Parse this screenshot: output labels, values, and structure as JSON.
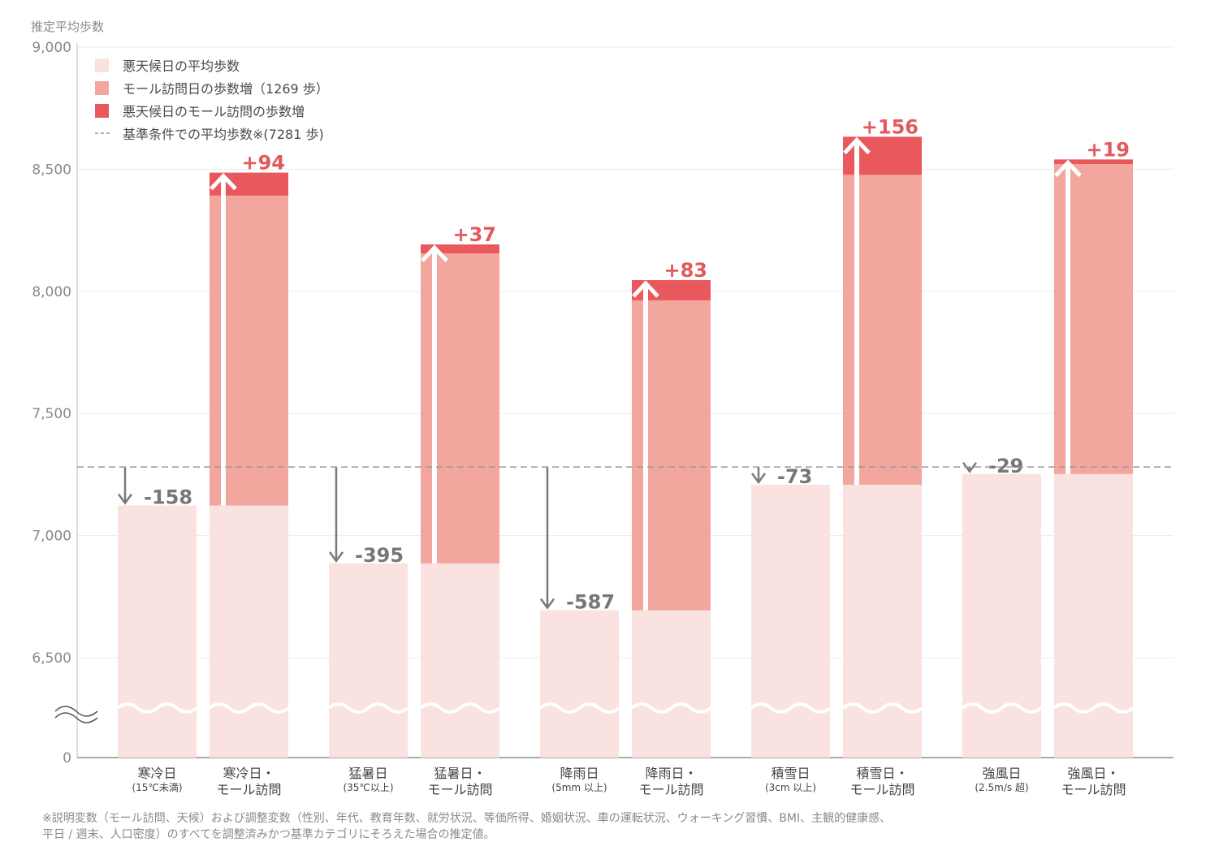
{
  "chart_data": {
    "type": "bar",
    "ylabel": "推定平均歩数",
    "ylim": [
      0,
      9000
    ],
    "y_axis_break": true,
    "yticks": [
      "9,000",
      "8,500",
      "8,000",
      "7,500",
      "7,000",
      "6,500",
      "0"
    ],
    "grid": true,
    "legend_position": "top-left",
    "legend": [
      {
        "label": "悪天候日の平均歩数",
        "color": "#f9e2df"
      },
      {
        "label": "モール訪問日の歩数増（1269 歩）",
        "color": "#f2a69d"
      },
      {
        "label": "悪天候日のモール訪問の歩数増",
        "color": "#e8585c"
      },
      {
        "label": "基準条件での平均歩数※(7281 歩)",
        "style": "dashed",
        "color": "#9a9a9a"
      }
    ],
    "baseline": 7281,
    "groups": [
      {
        "weather": {
          "line1": "寒冷日",
          "line2": "(15℃未満)",
          "value": 7123,
          "delta": -158,
          "delta_label": "-158"
        },
        "mall": {
          "line1": "寒冷日・",
          "line2": "モール訪問",
          "base": 7123,
          "increase": 1269,
          "extra": 94,
          "extra_label": "+94"
        }
      },
      {
        "weather": {
          "line1": "猛暑日",
          "line2": "(35℃以上)",
          "value": 6886,
          "delta": -395,
          "delta_label": "-395"
        },
        "mall": {
          "line1": "猛暑日・",
          "line2": "モール訪問",
          "base": 6886,
          "increase": 1269,
          "extra": 37,
          "extra_label": "+37"
        }
      },
      {
        "weather": {
          "line1": "降雨日",
          "line2": "(5mm 以上)",
          "value": 6694,
          "delta": -587,
          "delta_label": "-587"
        },
        "mall": {
          "line1": "降雨日・",
          "line2": "モール訪問",
          "base": 6694,
          "increase": 1269,
          "extra": 83,
          "extra_label": "+83"
        }
      },
      {
        "weather": {
          "line1": "積雪日",
          "line2": "(3cm 以上)",
          "value": 7208,
          "delta": -73,
          "delta_label": "-73"
        },
        "mall": {
          "line1": "積雪日・",
          "line2": "モール訪問",
          "base": 7208,
          "increase": 1269,
          "extra": 156,
          "extra_label": "+156"
        }
      },
      {
        "weather": {
          "line1": "強風日",
          "line2": "(2.5m/s 超)",
          "value": 7252,
          "delta": -29,
          "delta_label": "-29"
        },
        "mall": {
          "line1": "強風日・",
          "line2": "モール訪問",
          "base": 7252,
          "increase": 1269,
          "extra": 19,
          "extra_label": "+19"
        }
      }
    ]
  },
  "footnote": {
    "line1": "※説明変数（モール訪問、天候）および調整変数（性別、年代、教育年数、就労状況、等価所得、婚姻状況、車の運転状況、ウォーキング習慣、BMI、主観的健康感、",
    "line2": "平日 / 週末、人口密度）のすべてを調整済みかつ基準カテゴリにそろえた場合の推定値。"
  },
  "colors": {
    "light": "#f9e2df",
    "mid": "#f2a69d",
    "dark": "#e8585c",
    "arrow_gray": "#7a7a7a",
    "baseline": "#9a9a9a",
    "grid": "#ececec"
  }
}
